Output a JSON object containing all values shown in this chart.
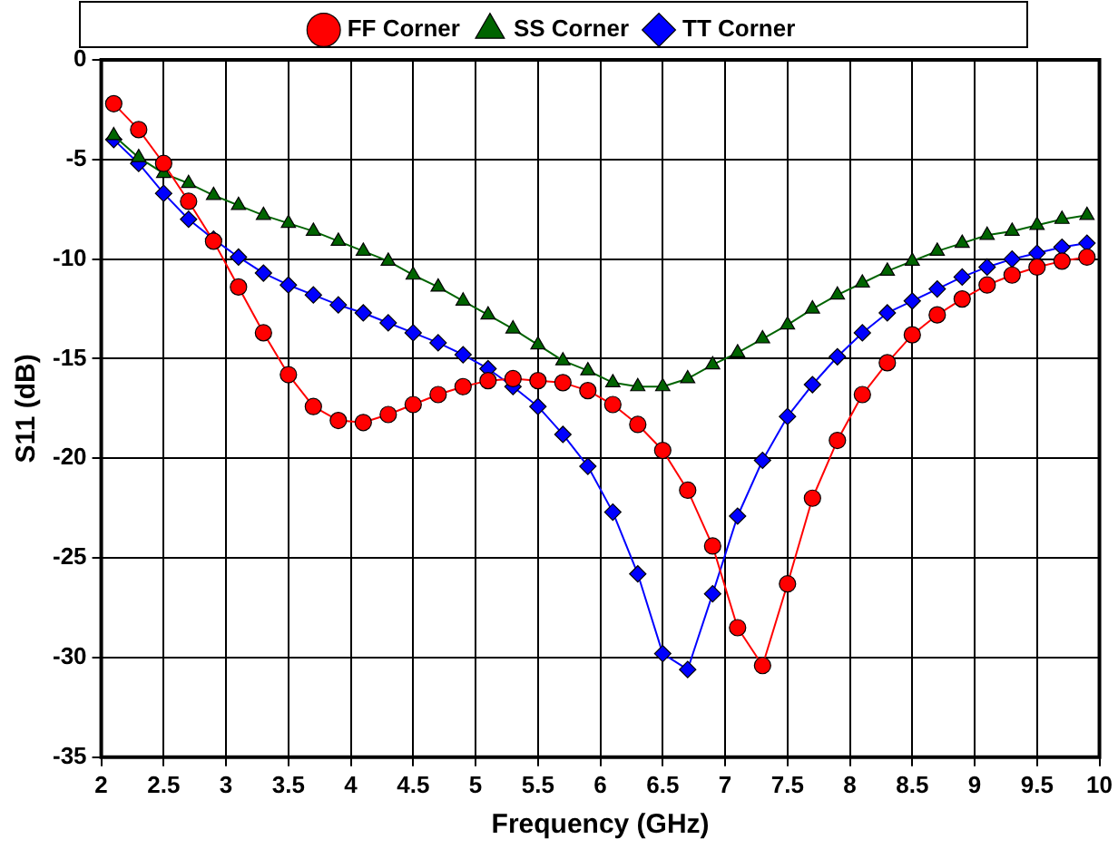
{
  "chart_data": {
    "type": "line",
    "xlabel": "Frequency (GHz)",
    "ylabel": "S11 (dB)",
    "x": [
      2.1,
      2.3,
      2.5,
      2.7,
      2.9,
      3.1,
      3.3,
      3.5,
      3.7,
      3.9,
      4.1,
      4.3,
      4.5,
      4.7,
      4.9,
      5.1,
      5.3,
      5.5,
      5.7,
      5.9,
      6.1,
      6.3,
      6.5,
      6.7,
      6.9,
      7.1,
      7.3,
      7.5,
      7.7,
      7.9,
      8.1,
      8.3,
      8.5,
      8.7,
      8.9,
      9.1,
      9.3,
      9.5,
      9.7,
      9.9
    ],
    "series": [
      {
        "name": "FF Corner",
        "color": "#ff0000",
        "marker": "circle",
        "values": [
          -2.2,
          -3.5,
          -5.2,
          -7.1,
          -9.1,
          -11.4,
          -13.7,
          -15.8,
          -17.4,
          -18.1,
          -18.2,
          -17.8,
          -17.3,
          -16.8,
          -16.4,
          -16.1,
          -16.0,
          -16.1,
          -16.2,
          -16.6,
          -17.3,
          -18.3,
          -19.6,
          -21.6,
          -24.4,
          -28.5,
          -30.4,
          -26.3,
          -22.0,
          -19.1,
          -16.8,
          -15.2,
          -13.8,
          -12.8,
          -12.0,
          -11.3,
          -10.8,
          -10.4,
          -10.1,
          -9.9
        ]
      },
      {
        "name": "SS Corner",
        "color": "#006400",
        "marker": "triangle",
        "values": [
          -3.8,
          -4.9,
          -5.7,
          -6.2,
          -6.8,
          -7.3,
          -7.8,
          -8.2,
          -8.6,
          -9.1,
          -9.6,
          -10.1,
          -10.8,
          -11.4,
          -12.1,
          -12.8,
          -13.5,
          -14.3,
          -15.1,
          -15.6,
          -16.2,
          -16.4,
          -16.4,
          -16.0,
          -15.3,
          -14.7,
          -14.0,
          -13.3,
          -12.5,
          -11.8,
          -11.2,
          -10.6,
          -10.1,
          -9.6,
          -9.2,
          -8.8,
          -8.6,
          -8.3,
          -8.0,
          -7.8
        ]
      },
      {
        "name": "TT Corner",
        "color": "#0000ff",
        "marker": "diamond",
        "values": [
          -4.0,
          -5.2,
          -6.7,
          -8.0,
          -9.0,
          -9.9,
          -10.7,
          -11.3,
          -11.8,
          -12.3,
          -12.7,
          -13.2,
          -13.7,
          -14.2,
          -14.8,
          -15.5,
          -16.4,
          -17.4,
          -18.8,
          -20.4,
          -22.7,
          -25.8,
          -29.8,
          -30.6,
          -26.8,
          -22.9,
          -20.1,
          -17.9,
          -16.3,
          -14.9,
          -13.7,
          -12.7,
          -12.1,
          -11.5,
          -10.9,
          -10.4,
          -10.0,
          -9.7,
          -9.4,
          -9.2
        ]
      }
    ],
    "xlim": [
      2,
      10
    ],
    "xticks": [
      2,
      2.5,
      3,
      3.5,
      4,
      4.5,
      5,
      5.5,
      6,
      6.5,
      7,
      7.5,
      8,
      8.5,
      9,
      9.5,
      10
    ],
    "ylim": [
      -35,
      0
    ],
    "yticks": [
      -35,
      -30,
      -25,
      -20,
      -15,
      -10,
      -5,
      0
    ],
    "grid": true,
    "legend": "top"
  }
}
